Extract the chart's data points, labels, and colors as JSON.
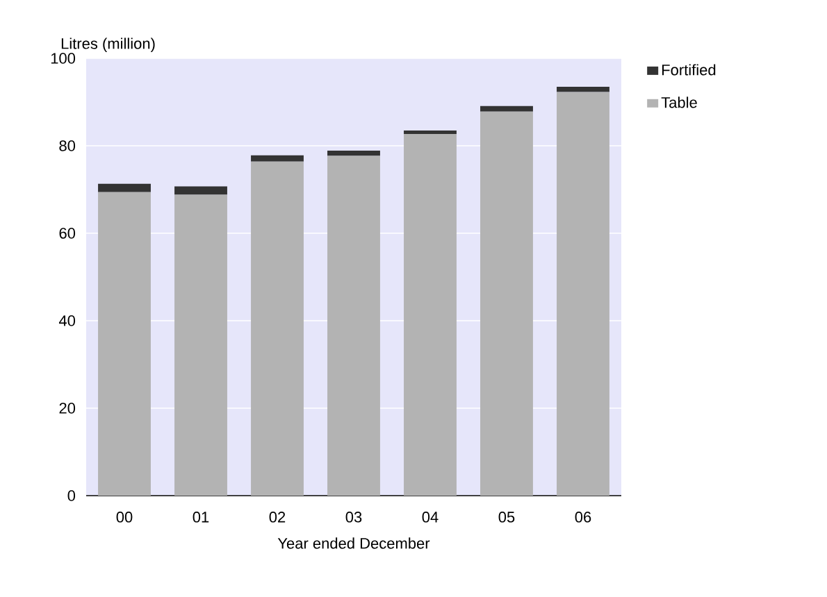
{
  "chart_data": {
    "type": "bar",
    "stacked": true,
    "xlabel": "Year ended December",
    "ylabel": "Litres (million)",
    "categories": [
      "00",
      "01",
      "02",
      "03",
      "04",
      "05",
      "06"
    ],
    "series": [
      {
        "name": "Table",
        "color": "#b3b3b3",
        "values": [
          69.4,
          68.8,
          76.4,
          77.7,
          82.7,
          87.8,
          92.3
        ]
      },
      {
        "name": "Fortified",
        "color": "#333333",
        "values": [
          1.9,
          1.9,
          1.4,
          1.2,
          0.8,
          1.3,
          1.2
        ]
      }
    ],
    "ylim": [
      0,
      100
    ],
    "yticks": [
      0,
      20,
      40,
      60,
      80,
      100
    ],
    "grid": "y",
    "legend": "right"
  }
}
